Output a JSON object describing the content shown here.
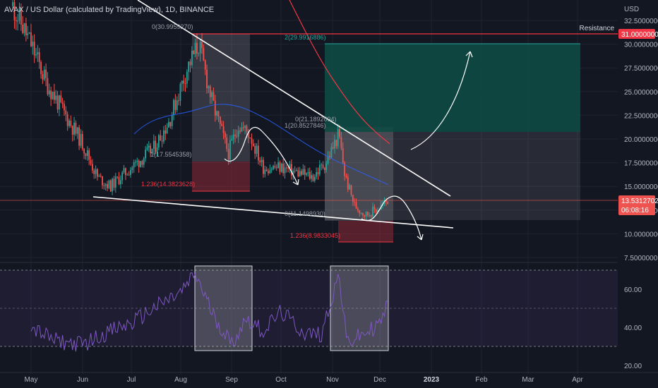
{
  "header": {
    "title": "AVAX / US Dollar (calculated by TradingView), 1D, BINANCE"
  },
  "price_axis": {
    "currency": "USD",
    "ticks": [
      "32.5000000",
      "30.0000000",
      "27.5000000",
      "25.0000000",
      "22.5000000",
      "20.0000000",
      "17.5000000",
      "15.0000000",
      "12.5000000",
      "10.0000000",
      "7.5000000"
    ],
    "tick_values": [
      32.5,
      30,
      27.5,
      25,
      22.5,
      20,
      17.5,
      15,
      12.5,
      10,
      7.5
    ],
    "resistance_label": "Resistance",
    "resistance_value": "31.0000000",
    "current_price": "13.5312702",
    "countdown": "06:08:16"
  },
  "rsi_axis": {
    "ticks": [
      "60.00",
      "40.00",
      "20.00"
    ],
    "tick_values": [
      60,
      40,
      20
    ]
  },
  "time_axis": {
    "labels": [
      "May",
      "Jun",
      "Jul",
      "Aug",
      "Sep",
      "Oct",
      "Nov",
      "Dec",
      "2023",
      "Feb",
      "Mar",
      "Apr"
    ],
    "bold_label": "2023"
  },
  "fib_labels": {
    "aug_zero": "0(30.9959270)",
    "aug_one": "1(17.5545358)",
    "aug_ext": "1.236(14.3823628)",
    "nov_zero": "0(21.1892094)",
    "nov_one": "1(20.8527846)",
    "nov_low": "0(11.1498930)",
    "nov_ext": "1.236(8.9833045)",
    "target": "2(29.9916886)"
  },
  "colors": {
    "background": "#131722",
    "up": "#26a69a",
    "down": "#ef5350",
    "ma_blue": "#2962ff",
    "ma_red": "#f23645",
    "rsi": "#7e57c2",
    "resistance": "#f23645",
    "target_zone": "#0e4d45"
  },
  "chart_data": {
    "type": "line",
    "ylim": [
      7.5,
      32.5
    ],
    "rsi_range": [
      20,
      70
    ],
    "price_path": {
      "x": [
        "2022-04-20",
        "2022-05-01",
        "2022-05-10",
        "2022-05-20",
        "2022-06-01",
        "2022-06-10",
        "2022-06-18",
        "2022-07-01",
        "2022-07-15",
        "2022-07-25",
        "2022-08-05",
        "2022-08-12",
        "2022-08-20",
        "2022-08-30",
        "2022-09-05",
        "2022-09-12",
        "2022-09-20",
        "2022-10-01",
        "2022-10-10",
        "2022-10-20",
        "2022-10-28",
        "2022-11-05",
        "2022-11-09",
        "2022-11-15",
        "2022-11-22",
        "2022-12-01",
        "2022-12-06"
      ],
      "close": [
        34,
        30,
        26,
        23,
        19.5,
        16,
        15,
        17,
        19,
        22,
        27.5,
        30,
        24,
        18.5,
        21.5,
        20.5,
        17,
        17,
        16.5,
        16,
        17.5,
        20.5,
        16,
        13,
        12,
        12.8,
        13.5312702
      ]
    },
    "rsi_path": {
      "x": [
        "2022-05-01",
        "2022-05-15",
        "2022-06-01",
        "2022-06-15",
        "2022-07-01",
        "2022-07-15",
        "2022-08-01",
        "2022-08-10",
        "2022-08-20",
        "2022-09-01",
        "2022-09-10",
        "2022-09-20",
        "2022-10-01",
        "2022-10-15",
        "2022-10-25",
        "2022-11-05",
        "2022-11-10",
        "2022-11-20",
        "2022-12-01",
        "2022-12-06"
      ],
      "value": [
        40,
        33,
        31,
        37,
        42,
        50,
        58,
        68,
        48,
        31,
        45,
        38,
        48,
        37,
        36,
        68,
        32,
        36,
        42,
        52
      ]
    }
  }
}
